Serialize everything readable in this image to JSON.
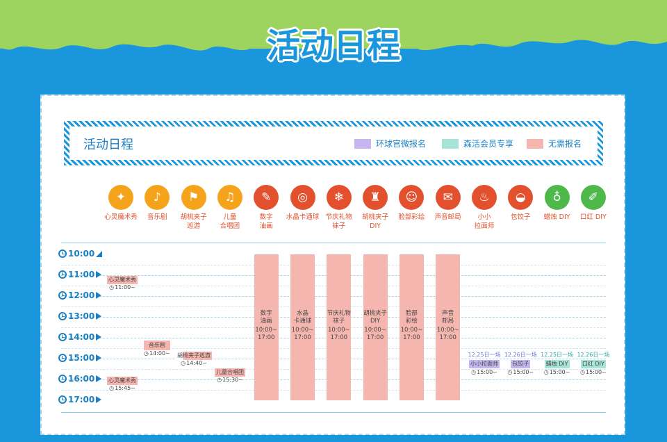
{
  "header": {
    "title": "活动日程"
  },
  "banner": {
    "title": "活动日程",
    "legend": [
      {
        "label": "环球官微报名",
        "color": "#c6b6ef"
      },
      {
        "label": "森活会员专享",
        "color": "#a8e3d7"
      },
      {
        "label": "无需报名",
        "color": "#f6b6b0"
      }
    ]
  },
  "activities": [
    {
      "label": "心灵魔术秀",
      "icon": "magic-hat-icon",
      "color": "#f5a31a"
    },
    {
      "label": "音乐剧",
      "icon": "performer-icon",
      "color": "#f5a31a"
    },
    {
      "label": "胡桃夹子\n巡游",
      "icon": "parade-icon",
      "color": "#f5a31a"
    },
    {
      "label": "儿童\n合唱团",
      "icon": "singer-icon",
      "color": "#f5a31a"
    },
    {
      "label": "数字\n油画",
      "icon": "palette-icon",
      "color": "#e2502e"
    },
    {
      "label": "水晶卡通球",
      "icon": "crystal-ball-icon",
      "color": "#e2502e"
    },
    {
      "label": "节庆礼物\n袜子",
      "icon": "stocking-icon",
      "color": "#e2502e"
    },
    {
      "label": "胡桃夹子\nDIY",
      "icon": "nutcracker-icon",
      "color": "#e2502e"
    },
    {
      "label": "脸部彩绘",
      "icon": "face-paint-icon",
      "color": "#e2502e"
    },
    {
      "label": "声音邮局",
      "icon": "mailbox-icon",
      "color": "#e2502e"
    },
    {
      "label": "小小\n拉面师",
      "icon": "noodle-bowl-icon",
      "color": "#e2502e"
    },
    {
      "label": "包饺子",
      "icon": "dumpling-icon",
      "color": "#e2502e"
    },
    {
      "label": "蜡烛 DIY",
      "icon": "candle-icon",
      "color": "#4fb84a"
    },
    {
      "label": "口红 DIY",
      "icon": "lipstick-icon",
      "color": "#4fb84a"
    }
  ],
  "times": [
    "10:00",
    "11:00",
    "12:00",
    "13:00",
    "14:00",
    "15:00",
    "16:00",
    "17:00"
  ],
  "events": {
    "magic1": {
      "name": "心灵魔术秀",
      "time": "11:00~"
    },
    "music": {
      "name": "音乐剧",
      "time": "14:00~"
    },
    "parade": {
      "name": "胡桃夹子巡游",
      "time": "14:40~"
    },
    "choir": {
      "name": "儿童合唱团",
      "time": "15:30~"
    },
    "magic2": {
      "name": "心灵魔术秀",
      "time": "15:45~"
    }
  },
  "bars": [
    {
      "name": "数字\n油画",
      "time": "10:00~\n17:00"
    },
    {
      "name": "水晶\n卡通球",
      "time": "10:00~\n17:00"
    },
    {
      "name": "节庆礼物\n袜子",
      "time": "10:00~\n17:00"
    },
    {
      "name": "胡桃夹子\nDIY",
      "time": "10:00~\n17:00"
    },
    {
      "name": "脸部\n彩绘",
      "time": "10:00~\n17:00"
    },
    {
      "name": "声音\n邮局",
      "time": "10:00~\n17:00"
    }
  ],
  "sessions": [
    {
      "date": "12.25日一场",
      "name": "小小拉面师",
      "time": "15:00~"
    },
    {
      "date": "12.26日一场",
      "name": "包饺子",
      "time": "15:00~"
    },
    {
      "date": "12.25日一场",
      "name": "蜡烛 DIY",
      "time": "15:00~"
    },
    {
      "date": "12.26日一场",
      "name": "口红 DIY",
      "time": "15:00~"
    }
  ]
}
